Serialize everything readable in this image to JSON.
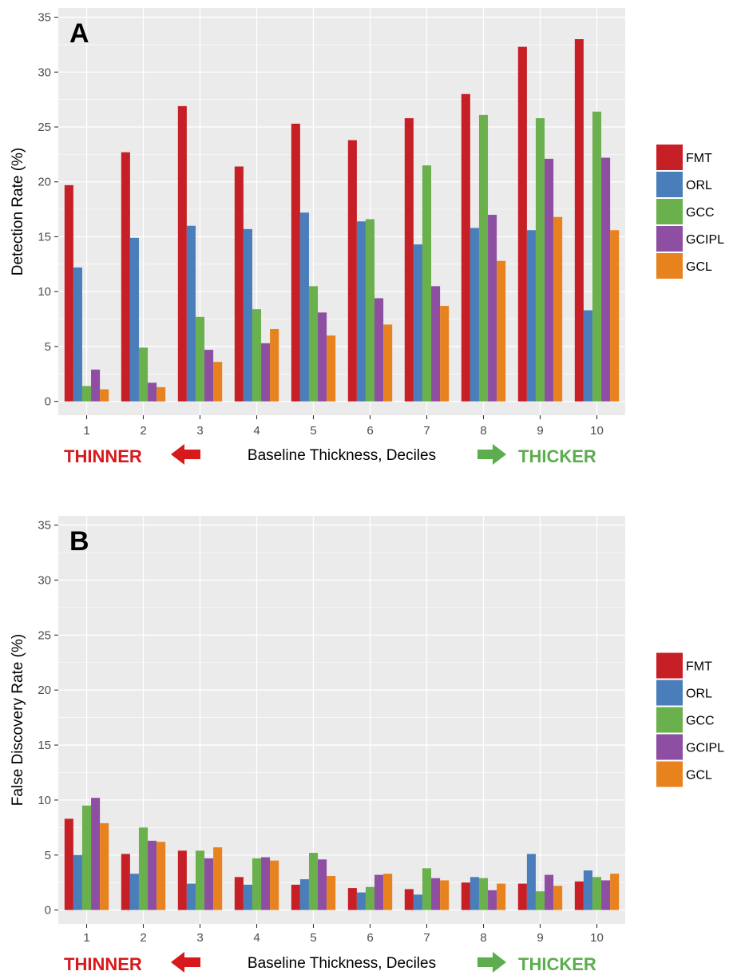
{
  "chart_data": [
    {
      "type": "bar",
      "panel": "A",
      "xlabel": "Baseline Thickness, Deciles",
      "ylabel": "Detection Rate (%)",
      "ylim": [
        0,
        35
      ],
      "yticks": [
        0,
        5,
        10,
        15,
        20,
        25,
        30,
        35
      ],
      "grid": true,
      "legend": "right",
      "categories": [
        "1",
        "2",
        "3",
        "4",
        "5",
        "6",
        "7",
        "8",
        "9",
        "10"
      ],
      "series": [
        {
          "name": "FMT",
          "color": "#c62026",
          "values": [
            19.7,
            22.7,
            26.9,
            21.4,
            25.3,
            23.8,
            25.8,
            28.0,
            32.3,
            33.0
          ]
        },
        {
          "name": "ORL",
          "color": "#4a7ebb",
          "values": [
            12.2,
            14.9,
            16.0,
            15.7,
            17.2,
            16.4,
            14.3,
            15.8,
            15.6,
            8.3
          ]
        },
        {
          "name": "GCC",
          "color": "#6ab04c",
          "values": [
            1.4,
            4.9,
            7.7,
            8.4,
            10.5,
            16.6,
            21.5,
            26.1,
            25.8,
            26.4
          ]
        },
        {
          "name": "GCIPL",
          "color": "#8e4ea1",
          "values": [
            2.9,
            1.7,
            4.7,
            5.3,
            8.1,
            9.4,
            10.5,
            17.0,
            22.1,
            22.2
          ]
        },
        {
          "name": "GCL",
          "color": "#e8821e",
          "values": [
            1.1,
            1.3,
            3.6,
            6.6,
            6.0,
            7.0,
            8.7,
            12.8,
            16.8,
            15.6
          ]
        }
      ],
      "annotations": {
        "left": "THINNER",
        "right": "THICKER"
      }
    },
    {
      "type": "bar",
      "panel": "B",
      "xlabel": "Baseline Thickness, Deciles",
      "ylabel": "False Discovery Rate (%)",
      "ylim": [
        0,
        35
      ],
      "yticks": [
        0,
        5,
        10,
        15,
        20,
        25,
        30,
        35
      ],
      "grid": true,
      "legend": "right",
      "categories": [
        "1",
        "2",
        "3",
        "4",
        "5",
        "6",
        "7",
        "8",
        "9",
        "10"
      ],
      "series": [
        {
          "name": "FMT",
          "color": "#c62026",
          "values": [
            8.3,
            5.1,
            5.4,
            3.0,
            2.3,
            2.0,
            1.9,
            2.5,
            2.4,
            2.6
          ]
        },
        {
          "name": "ORL",
          "color": "#4a7ebb",
          "values": [
            5.0,
            3.3,
            2.4,
            2.3,
            2.8,
            1.6,
            1.4,
            3.0,
            5.1,
            3.6
          ]
        },
        {
          "name": "GCC",
          "color": "#6ab04c",
          "values": [
            9.5,
            7.5,
            5.4,
            4.7,
            5.2,
            2.1,
            3.8,
            2.9,
            1.7,
            3.0
          ]
        },
        {
          "name": "GCIPL",
          "color": "#8e4ea1",
          "values": [
            10.2,
            6.3,
            4.7,
            4.8,
            4.6,
            3.2,
            2.9,
            1.8,
            3.2,
            2.7
          ]
        },
        {
          "name": "GCL",
          "color": "#e8821e",
          "values": [
            7.9,
            6.2,
            5.7,
            4.5,
            3.1,
            3.3,
            2.7,
            2.4,
            2.2,
            3.3
          ]
        }
      ],
      "annotations": {
        "left": "THINNER",
        "right": "THICKER"
      }
    }
  ],
  "colors": {
    "panel_background": "#ebebeb",
    "grid": "#ffffff",
    "thinner": "#d7191c",
    "thicker": "#5cad4e"
  }
}
